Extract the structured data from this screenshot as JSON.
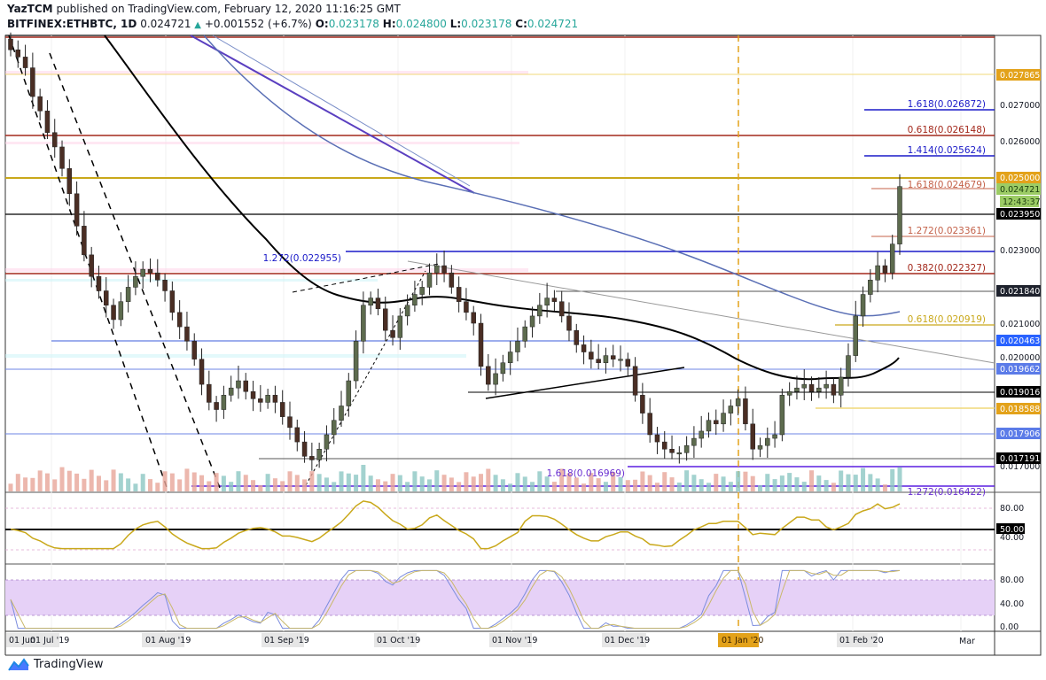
{
  "header": {
    "author": "YazTCM",
    "published_text": "published on TradingView.com, February 12, 2020 11:16:25 GMT",
    "symbol": "BITFINEX:ETHBTC, 1D",
    "last": "0.024721",
    "change": "+0.001552 (+6.7%)",
    "open_label": "O:",
    "open": "0.023178",
    "high_label": "H:",
    "high": "0.024800",
    "low_label": "L:",
    "low": "0.023178",
    "close_label": "C:",
    "close": "0.024721"
  },
  "footer": {
    "brand": "TradingView"
  },
  "colors": {
    "up_candle": "#5d6b4e",
    "down_candle": "#4a2e24",
    "vol_up": "#8cc7c3",
    "vol_down": "#e7a598",
    "rsi_line": "#c9a81a",
    "stoch_k": "#7b8cde",
    "stoch_d": "#c9b86a",
    "stoch_band": "#e6d1f7",
    "ma_black": "#000000",
    "ma_blue": "#5a6fb5",
    "accent_orange": "#e3a21a"
  },
  "chart_data": {
    "type": "candlestick",
    "title": "BITFINEX:ETHBTC, 1D",
    "xlabel": "",
    "ylabel": "ETH/BTC",
    "ylim": [
      0.0162,
      0.0289
    ],
    "x_ticks": [
      "01 Jun",
      "01 Jul '19",
      "01 Aug '19",
      "01 Sep '19",
      "01 Oct '19",
      "01 Nov '19",
      "01 Dec '19",
      "01 Jan '20",
      "01 Feb '20",
      "Mar"
    ],
    "highlighted_x_tick": "01 Jan '20",
    "y_ticks": [
      "0.027000",
      "0.026000",
      "0.025000",
      "0.024000",
      "0.023000",
      "0.022000",
      "0.021000",
      "0.020000",
      "0.019000",
      "0.018000",
      "0.017000"
    ],
    "price_labels": [
      {
        "value": "0.027865",
        "bg": "#e3a21a",
        "fg": "#ffffff"
      },
      {
        "value": "0.025000",
        "bg": "#e3a21a",
        "fg": "#ffffff"
      },
      {
        "value": "0.024721",
        "bg": "#9ccc65",
        "fg": "#1b3d0d"
      },
      {
        "value": "12:43:37",
        "bg": "#9ccc65",
        "fg": "#1b3d0d"
      },
      {
        "value": "0.023950",
        "bg": "#000000",
        "fg": "#ffffff"
      },
      {
        "value": "0.021840",
        "bg": "#1e222d",
        "fg": "#ffffff"
      },
      {
        "value": "0.020463",
        "bg": "#2962ff",
        "fg": "#ffffff"
      },
      {
        "value": "0.019662",
        "bg": "#5b7be8",
        "fg": "#ffffff"
      },
      {
        "value": "0.019016",
        "bg": "#000000",
        "fg": "#ffffff"
      },
      {
        "value": "0.018588",
        "bg": "#e3a21a",
        "fg": "#ffffff"
      },
      {
        "value": "0.017906",
        "bg": "#5b7be8",
        "fg": "#ffffff"
      },
      {
        "value": "0.017191",
        "bg": "#000000",
        "fg": "#ffffff"
      }
    ],
    "fib_annotations": [
      {
        "text": "1.618(0.026872)",
        "color": "#1a1ac8"
      },
      {
        "text": "0.618(0.026148)",
        "color": "#a3281b"
      },
      {
        "text": "1.414(0.025624)",
        "color": "#1a1ac8"
      },
      {
        "text": "1.618(0.024679)",
        "color": "#c4624a"
      },
      {
        "text": "1.272(0.023361)",
        "color": "#c4624a"
      },
      {
        "text": "1.272(0.022955)",
        "color": "#1a1ac8"
      },
      {
        "text": "0.382(0.022327)",
        "color": "#a3281b"
      },
      {
        "text": "0.618(0.020919)",
        "color": "#c9a81a"
      },
      {
        "text": "1.618(0.016969)",
        "color": "#6a2fd1"
      },
      {
        "text": "1.272(0.016422)",
        "color": "#6a2fd1"
      }
    ],
    "horizontal_levels": [
      0.027865,
      0.026872,
      0.026148,
      0.025624,
      0.025,
      0.024679,
      0.02395,
      0.023361,
      0.022955,
      0.022327,
      0.02184,
      0.020919,
      0.020463,
      0.019662,
      0.019016,
      0.018588,
      0.017906,
      0.017191,
      0.016969,
      0.016422
    ],
    "ohlc_summary": {
      "last_open": 0.023178,
      "last_high": 0.0248,
      "last_low": 0.023178,
      "last_close": 0.024721,
      "period_high_approx": 0.0288,
      "period_low_approx": 0.01685
    },
    "close_series_approx": [
      0.0285,
      0.0283,
      0.028,
      0.0272,
      0.0268,
      0.0262,
      0.0258,
      0.0252,
      0.0245,
      0.0236,
      0.0228,
      0.0222,
      0.0218,
      0.0214,
      0.021,
      0.0215,
      0.0219,
      0.0222,
      0.0224,
      0.0223,
      0.0221,
      0.0218,
      0.0212,
      0.0208,
      0.0204,
      0.0199,
      0.0192,
      0.0187,
      0.0185,
      0.0189,
      0.0191,
      0.0193,
      0.019,
      0.0188,
      0.0187,
      0.0189,
      0.0187,
      0.0183,
      0.018,
      0.0176,
      0.0172,
      0.0171,
      0.0174,
      0.0178,
      0.0182,
      0.0186,
      0.0193,
      0.0204,
      0.0214,
      0.0216,
      0.0213,
      0.0207,
      0.0205,
      0.0211,
      0.0214,
      0.0217,
      0.0219,
      0.0223,
      0.0225,
      0.0223,
      0.0219,
      0.0215,
      0.0212,
      0.0209,
      0.0197,
      0.0192,
      0.0195,
      0.0198,
      0.0201,
      0.0204,
      0.0208,
      0.0211,
      0.0214,
      0.0216,
      0.0215,
      0.0211,
      0.0207,
      0.0203,
      0.0201,
      0.0199,
      0.0198,
      0.02,
      0.0199,
      0.0199,
      0.0197,
      0.0189,
      0.0184,
      0.0178,
      0.0176,
      0.0174,
      0.0173,
      0.0173,
      0.0175,
      0.0177,
      0.0179,
      0.0182,
      0.0181,
      0.0184,
      0.0186,
      0.0188,
      0.0181,
      0.0174,
      0.0175,
      0.0177,
      0.0178,
      0.0189,
      0.019,
      0.0191,
      0.0192,
      0.019,
      0.0191,
      0.0192,
      0.0189,
      0.0194,
      0.02,
      0.0211,
      0.0217,
      0.0221,
      0.0225,
      0.0223,
      0.0231,
      0.0247
    ],
    "rsi": {
      "levels": [
        "80.00",
        "50.00",
        "40.00"
      ],
      "last_approx": 88
    },
    "stoch": {
      "levels": [
        "80.00",
        "40.00",
        "0.00"
      ],
      "band": [
        20,
        80
      ]
    },
    "moving_averages": [
      "MA black (~100d)",
      "MA blue (~200d)"
    ]
  }
}
